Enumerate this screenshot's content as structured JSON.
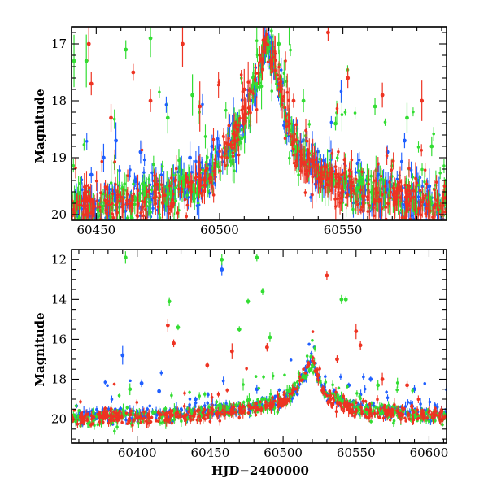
{
  "figure": {
    "x_axis_label": "HJD−2400000"
  },
  "chart_data": [
    {
      "type": "scatter",
      "panel": "top",
      "title": "",
      "xlabel": "",
      "ylabel": "Magnitude",
      "xlim": [
        60440,
        60592
      ],
      "ylim": [
        20.1,
        16.7
      ],
      "y_inverted": true,
      "x_ticks": [
        60450,
        60500,
        60550
      ],
      "y_ticks": [
        17,
        18,
        19,
        20
      ],
      "grid": false,
      "legend": "none",
      "series": [
        {
          "color": "#1f5fff",
          "baseline": [
            [
              60440,
              19.9
            ],
            [
              60470,
              19.7
            ],
            [
              60490,
              19.5
            ],
            [
              60500,
              19.1
            ],
            [
              60510,
              18.4
            ],
            [
              60516,
              17.5
            ],
            [
              60519,
              16.95
            ],
            [
              60522,
              17.4
            ],
            [
              60530,
              18.7
            ],
            [
              60540,
              19.3
            ],
            [
              60560,
              19.6
            ],
            [
              60592,
              19.8
            ]
          ],
          "points": [
            [
              60448,
              19.3
            ],
            [
              60453,
              19.0
            ],
            [
              60458,
              18.7
            ],
            [
              60468,
              18.9
            ],
            [
              60479,
              19.6
            ],
            [
              60488,
              19.0
            ],
            [
              60497,
              18.8
            ],
            [
              60541,
              19.2
            ],
            [
              60556,
              19.1
            ],
            [
              60568,
              18.9
            ],
            [
              60575,
              18.7
            ],
            [
              60585,
              19.5
            ],
            [
              60520,
              16.9
            ]
          ]
        },
        {
          "color": "#33dd33",
          "baseline": [
            [
              60440,
              19.9
            ],
            [
              60470,
              19.75
            ],
            [
              60490,
              19.5
            ],
            [
              60500,
              19.1
            ],
            [
              60510,
              18.4
            ],
            [
              60516,
              17.5
            ],
            [
              60519,
              16.95
            ],
            [
              60522,
              17.4
            ],
            [
              60530,
              18.7
            ],
            [
              60540,
              19.3
            ],
            [
              60560,
              19.6
            ],
            [
              60592,
              19.8
            ]
          ],
          "points": [
            [
              60441,
              17.3
            ],
            [
              60446,
              17.3
            ],
            [
              60462,
              17.1
            ],
            [
              60472,
              16.9
            ],
            [
              60479,
              18.3
            ],
            [
              60489,
              17.9
            ],
            [
              60506,
              18.4
            ],
            [
              60524,
              17.0
            ],
            [
              60534,
              18.0
            ],
            [
              60547,
              18.4
            ],
            [
              60563,
              18.1
            ],
            [
              60576,
              18.3
            ],
            [
              60586,
              18.8
            ]
          ]
        },
        {
          "color": "#ee3322",
          "baseline": [
            [
              60440,
              19.9
            ],
            [
              60470,
              19.8
            ],
            [
              60490,
              19.5
            ],
            [
              60500,
              19.1
            ],
            [
              60510,
              18.3
            ],
            [
              60516,
              17.4
            ],
            [
              60519,
              16.9
            ],
            [
              60522,
              17.3
            ],
            [
              60530,
              18.8
            ],
            [
              60540,
              19.3
            ],
            [
              60560,
              19.65
            ],
            [
              60592,
              19.85
            ]
          ],
          "points": [
            [
              60447,
              17.0
            ],
            [
              60448,
              17.7
            ],
            [
              60456,
              18.3
            ],
            [
              60465,
              17.5
            ],
            [
              60472,
              18.0
            ],
            [
              60485,
              17.0
            ],
            [
              60492,
              18.1
            ],
            [
              60510,
              17.8
            ],
            [
              60530,
              18.0
            ],
            [
              60544,
              16.8
            ],
            [
              60552,
              17.6
            ],
            [
              60566,
              17.9
            ],
            [
              60582,
              18.0
            ]
          ]
        }
      ]
    },
    {
      "type": "scatter",
      "panel": "bottom",
      "title": "",
      "xlabel": "HJD−2400000",
      "ylabel": "Magnitude",
      "xlim": [
        60355,
        60612
      ],
      "ylim": [
        21.2,
        11.5
      ],
      "y_inverted": true,
      "x_ticks": [
        60400,
        60450,
        60500,
        60550,
        60600
      ],
      "y_ticks": [
        12,
        14,
        16,
        18,
        20
      ],
      "grid": false,
      "legend": "none",
      "series": [
        {
          "color": "#1f5fff",
          "baseline": [
            [
              60360,
              19.8
            ],
            [
              60420,
              19.7
            ],
            [
              60470,
              19.5
            ],
            [
              60500,
              19.1
            ],
            [
              60510,
              18.4
            ],
            [
              60516,
              17.6
            ],
            [
              60519,
              17.0
            ],
            [
              60522,
              17.6
            ],
            [
              60530,
              18.8
            ],
            [
              60550,
              19.5
            ],
            [
              60612,
              19.8
            ]
          ],
          "points": [
            [
              60390,
              16.8
            ],
            [
              60403,
              18.2
            ],
            [
              60415,
              18.6
            ],
            [
              60440,
              19.0
            ],
            [
              60458,
              12.5
            ],
            [
              60482,
              18.5
            ],
            [
              60535,
              18.6
            ],
            [
              60545,
              18.3
            ],
            [
              60560,
              18.0
            ],
            [
              60590,
              18.5
            ]
          ]
        },
        {
          "color": "#33dd33",
          "baseline": [
            [
              60360,
              20.0
            ],
            [
              60420,
              19.8
            ],
            [
              60470,
              19.5
            ],
            [
              60500,
              19.1
            ],
            [
              60510,
              18.4
            ],
            [
              60516,
              17.6
            ],
            [
              60519,
              17.0
            ],
            [
              60522,
              17.6
            ],
            [
              60530,
              18.8
            ],
            [
              60550,
              19.5
            ],
            [
              60612,
              19.9
            ]
          ],
          "points": [
            [
              60392,
              11.9
            ],
            [
              60422,
              14.1
            ],
            [
              60428,
              15.4
            ],
            [
              60458,
              12.0
            ],
            [
              60470,
              15.5
            ],
            [
              60476,
              14.1
            ],
            [
              60482,
              11.9
            ],
            [
              60486,
              13.6
            ],
            [
              60491,
              15.9
            ],
            [
              60540,
              14.0
            ],
            [
              60543,
              14.0
            ],
            [
              60395,
              18.5
            ],
            [
              60565,
              18.3
            ]
          ]
        },
        {
          "color": "#ee3322",
          "baseline": [
            [
              60360,
              19.9
            ],
            [
              60420,
              19.9
            ],
            [
              60470,
              19.6
            ],
            [
              60500,
              19.2
            ],
            [
              60510,
              18.3
            ],
            [
              60516,
              17.5
            ],
            [
              60519,
              16.9
            ],
            [
              60522,
              17.5
            ],
            [
              60530,
              18.9
            ],
            [
              60550,
              19.6
            ],
            [
              60612,
              19.9
            ]
          ],
          "points": [
            [
              60421,
              15.3
            ],
            [
              60425,
              16.2
            ],
            [
              60448,
              17.3
            ],
            [
              60465,
              16.6
            ],
            [
              60489,
              16.4
            ],
            [
              60530,
              12.8
            ],
            [
              60537,
              17.0
            ],
            [
              60550,
              15.6
            ],
            [
              60553,
              16.3
            ],
            [
              60568,
              18.0
            ],
            [
              60585,
              18.3
            ]
          ]
        }
      ]
    }
  ]
}
